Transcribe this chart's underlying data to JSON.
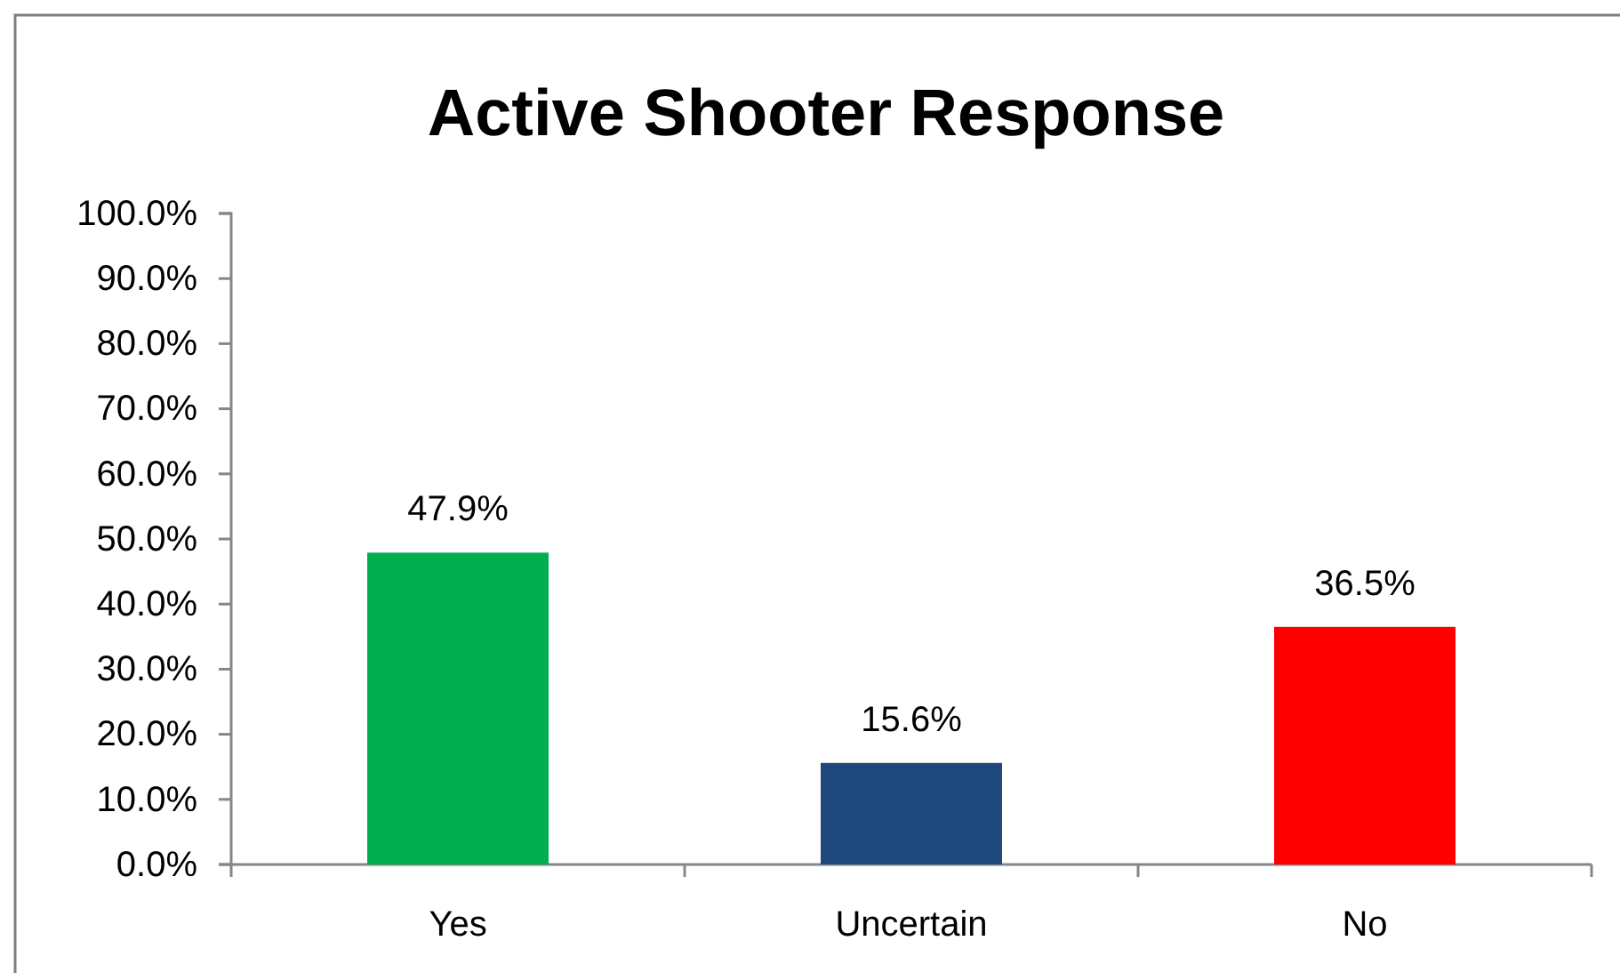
{
  "chart_data": {
    "type": "bar",
    "title": "Active Shooter Response",
    "categories": [
      "Yes",
      "Uncertain",
      "No"
    ],
    "values": [
      47.9,
      15.6,
      36.5
    ],
    "colors": [
      "#00b050",
      "#1f497d",
      "#ff0000"
    ],
    "value_labels": [
      "47.9%",
      "15.6%",
      "36.5%"
    ],
    "ylim": [
      0,
      100
    ],
    "yticks": [
      {
        "value": 0,
        "label": "0.0%"
      },
      {
        "value": 10,
        "label": "10.0%"
      },
      {
        "value": 20,
        "label": "20.0%"
      },
      {
        "value": 30,
        "label": "30.0%"
      },
      {
        "value": 40,
        "label": "40.0%"
      },
      {
        "value": 50,
        "label": "50.0%"
      },
      {
        "value": 60,
        "label": "60.0%"
      },
      {
        "value": 70,
        "label": "70.0%"
      },
      {
        "value": 80,
        "label": "80.0%"
      },
      {
        "value": 90,
        "label": "90.0%"
      },
      {
        "value": 100,
        "label": "100.0%"
      }
    ]
  }
}
